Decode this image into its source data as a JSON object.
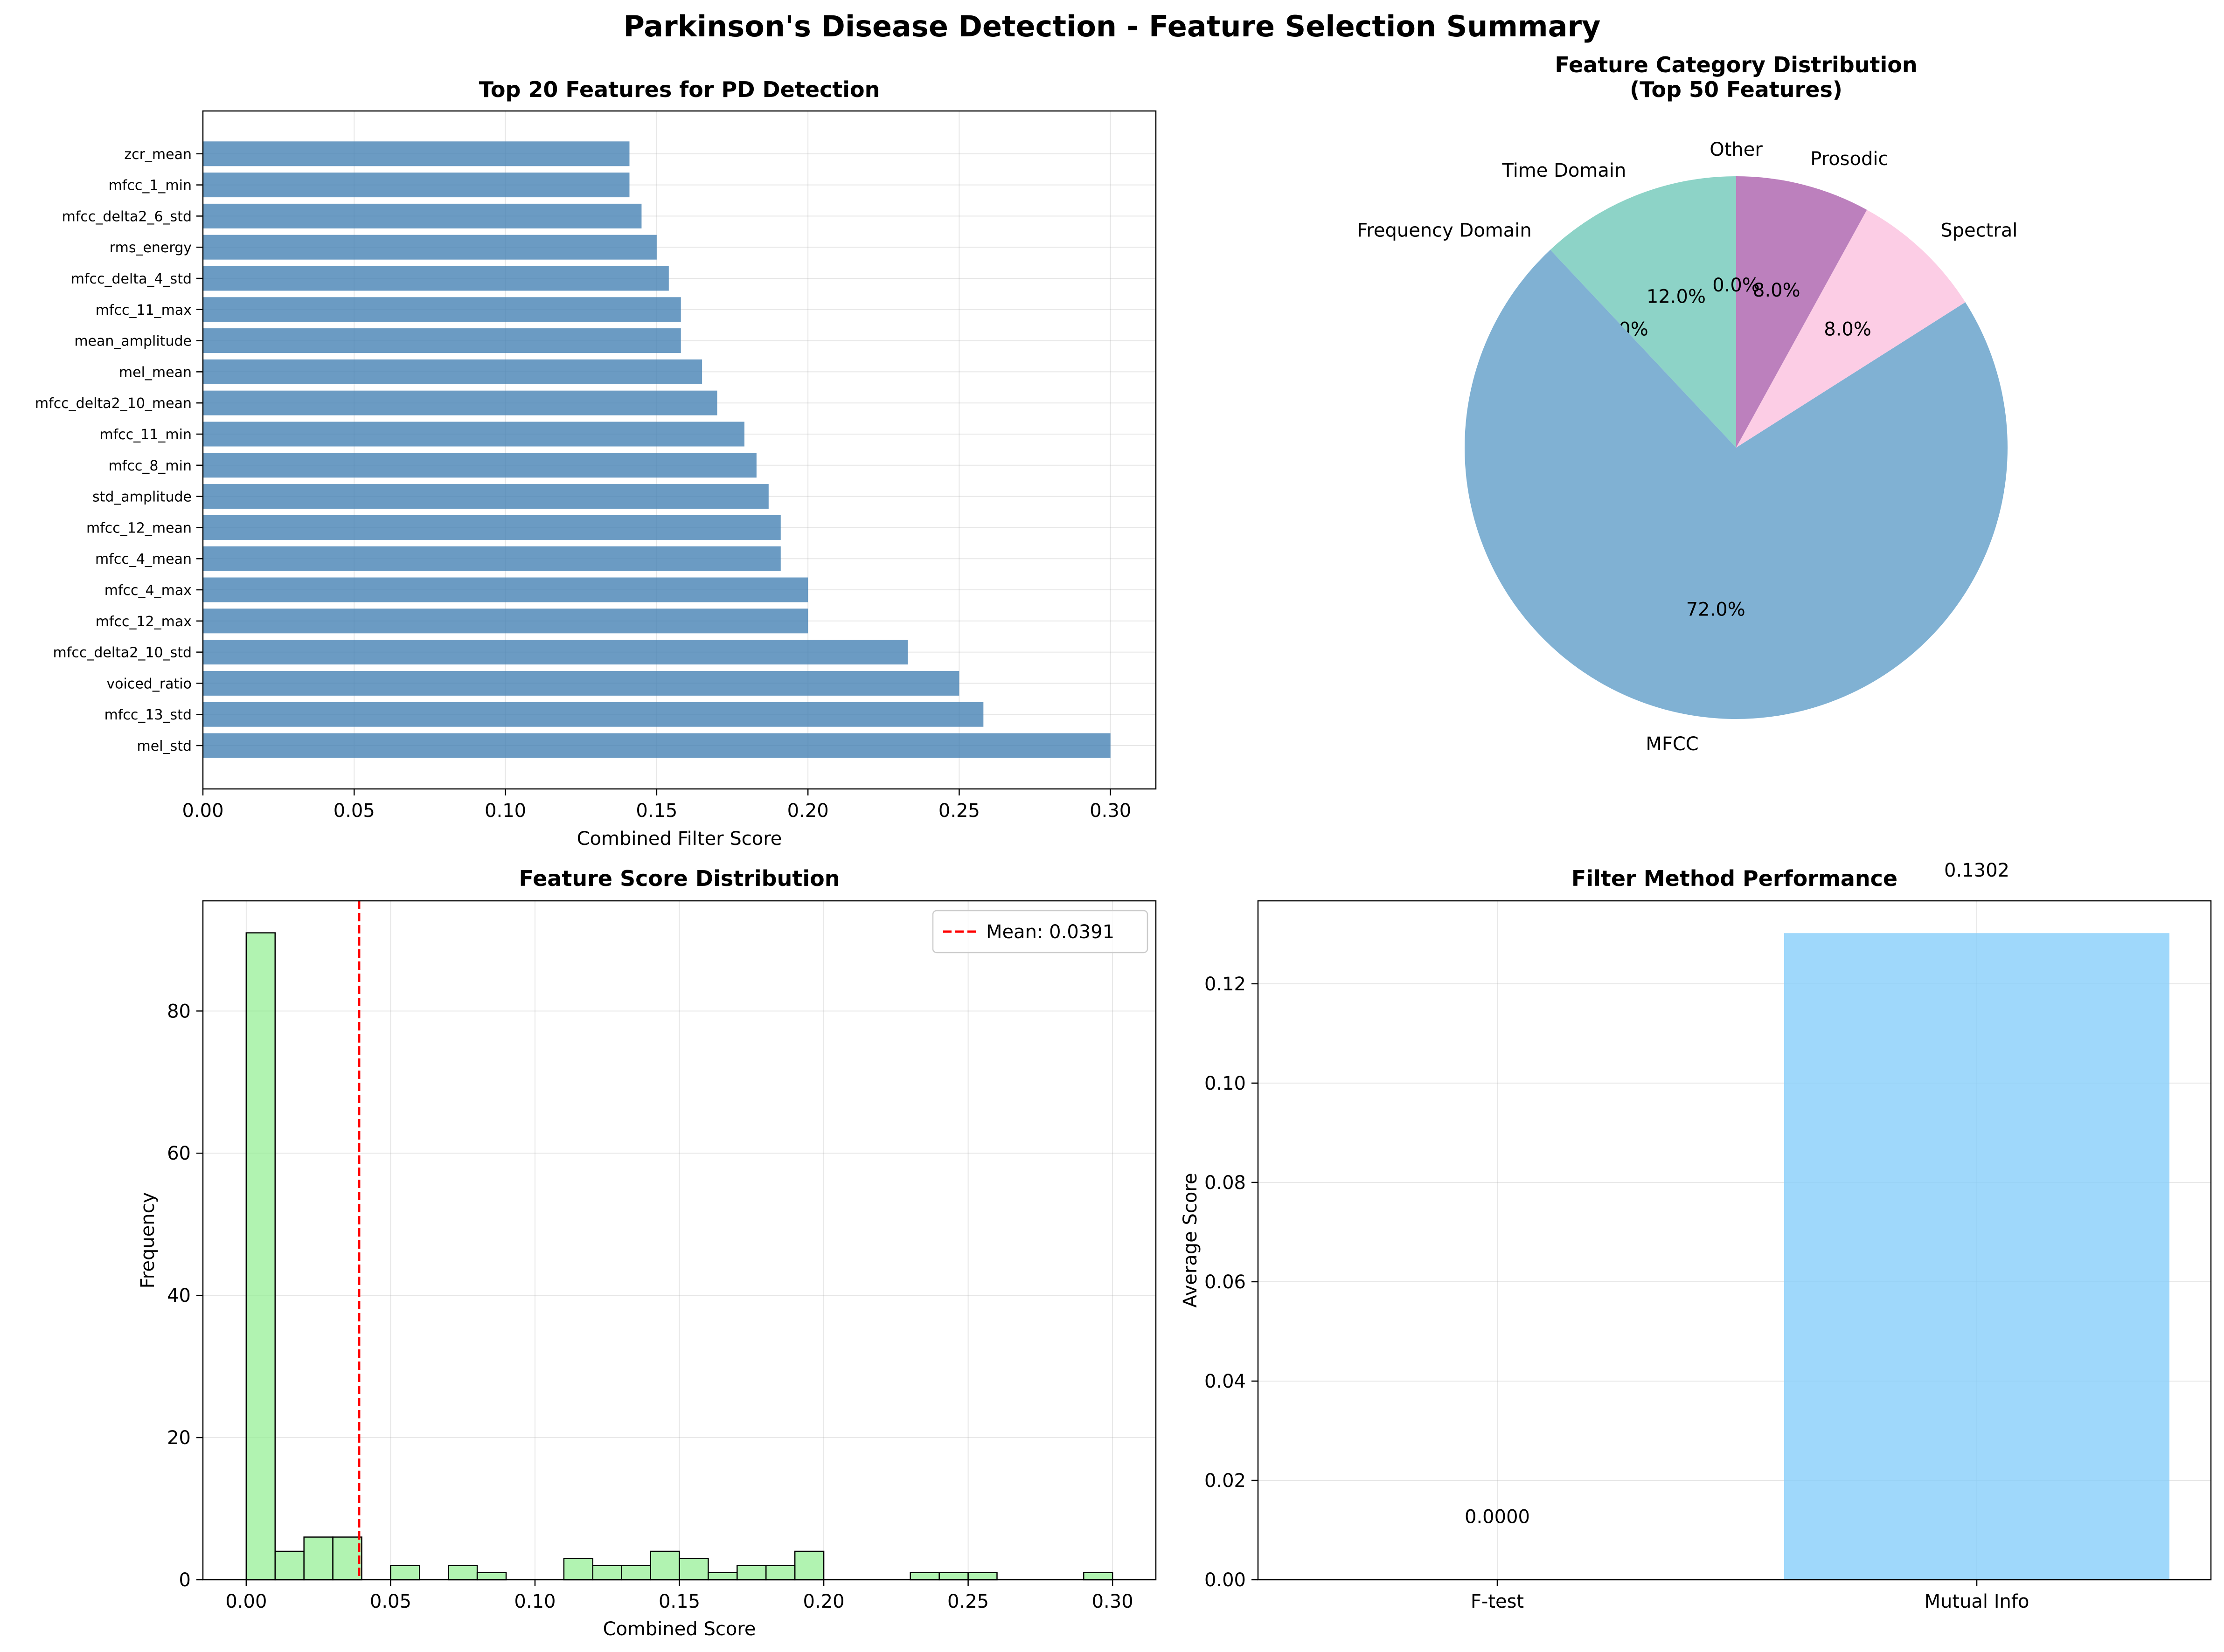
{
  "figure": {
    "suptitle": "Parkinson's Disease Detection - Feature Selection Summary"
  },
  "chart_data": [
    {
      "type": "bar",
      "orientation": "horizontal",
      "title": "Top 20 Features for PD Detection",
      "xlabel": "Combined Filter Score",
      "ylabel": "",
      "xlim": [
        0,
        0.315
      ],
      "xticks": [
        "0.00",
        "0.05",
        "0.10",
        "0.15",
        "0.20",
        "0.25",
        "0.30"
      ],
      "xtick_values": [
        0,
        0.05,
        0.1,
        0.15,
        0.2,
        0.25,
        0.3
      ],
      "grid": true,
      "color": "#4682b4",
      "categories": [
        "mel_std",
        "mfcc_13_std",
        "voiced_ratio",
        "mfcc_delta2_10_std",
        "mfcc_12_max",
        "mfcc_4_max",
        "mfcc_4_mean",
        "mfcc_12_mean",
        "std_amplitude",
        "mfcc_8_min",
        "mfcc_11_min",
        "mfcc_delta2_10_mean",
        "mel_mean",
        "mean_amplitude",
        "mfcc_11_max",
        "mfcc_delta_4_std",
        "rms_energy",
        "mfcc_delta2_6_std",
        "mfcc_1_min",
        "zcr_mean"
      ],
      "values": [
        0.3,
        0.258,
        0.25,
        0.233,
        0.2,
        0.2,
        0.191,
        0.191,
        0.187,
        0.183,
        0.179,
        0.17,
        0.165,
        0.158,
        0.158,
        0.154,
        0.15,
        0.145,
        0.141,
        0.141
      ]
    },
    {
      "type": "pie",
      "title": "Feature Category Distribution",
      "subtitle": "(Top 50 Features)",
      "start_angle": 90,
      "slices": [
        {
          "label": "Time Domain",
          "value": 12.0,
          "pct": "12.0%",
          "color": "#8dd3c7"
        },
        {
          "label": "Frequency Domain",
          "value": 0.0,
          "pct": "0.0%",
          "color": "#ffffb3"
        },
        {
          "label": "MFCC",
          "value": 72.0,
          "pct": "72.0%",
          "color": "#80b1d3"
        },
        {
          "label": "Spectral",
          "value": 8.0,
          "pct": "8.0%",
          "color": "#fccde5"
        },
        {
          "label": "Prosodic",
          "value": 8.0,
          "pct": "8.0%",
          "color": "#bc80bd"
        },
        {
          "label": "Other",
          "value": 0.0,
          "pct": "0.0%",
          "color": "#ccebc5"
        }
      ]
    },
    {
      "type": "histogram",
      "title": "Feature Score Distribution",
      "xlabel": "Combined Score",
      "ylabel": "Frequency",
      "xlim": [
        -0.015,
        0.315
      ],
      "ylim": [
        0,
        95.5
      ],
      "xticks": [
        "0.00",
        "0.05",
        "0.10",
        "0.15",
        "0.20",
        "0.25",
        "0.30"
      ],
      "xtick_values": [
        0,
        0.05,
        0.1,
        0.15,
        0.2,
        0.25,
        0.3
      ],
      "yticks": [
        "0",
        "20",
        "40",
        "60",
        "80"
      ],
      "ytick_values": [
        0,
        20,
        40,
        60,
        80
      ],
      "grid": true,
      "color": "#90ee90",
      "bin_start": 0.0,
      "bin_width": 0.01,
      "counts": [
        91,
        4,
        6,
        6,
        0,
        2,
        0,
        2,
        1,
        0,
        0,
        3,
        2,
        2,
        4,
        3,
        1,
        2,
        2,
        4,
        0,
        0,
        0,
        1,
        1,
        1,
        0,
        0,
        0,
        1
      ],
      "mean_line": {
        "value": 0.0391,
        "label": "Mean: 0.0391",
        "color": "#ff0000"
      },
      "legend_position": "upper-right"
    },
    {
      "type": "bar",
      "title": "Filter Method Performance",
      "xlabel": "",
      "ylabel": "Average Score",
      "ylim": [
        0,
        0.1367
      ],
      "yticks": [
        "0.00",
        "0.02",
        "0.04",
        "0.06",
        "0.08",
        "0.10",
        "0.12"
      ],
      "ytick_values": [
        0,
        0.02,
        0.04,
        0.06,
        0.08,
        0.1,
        0.12
      ],
      "grid": true,
      "categories": [
        "F-test",
        "Mutual Info"
      ],
      "values": [
        0.0,
        0.1302
      ],
      "value_labels": [
        "0.0000",
        "0.1302"
      ],
      "colors": [
        "#ffb6c1",
        "#87cefa"
      ]
    }
  ]
}
